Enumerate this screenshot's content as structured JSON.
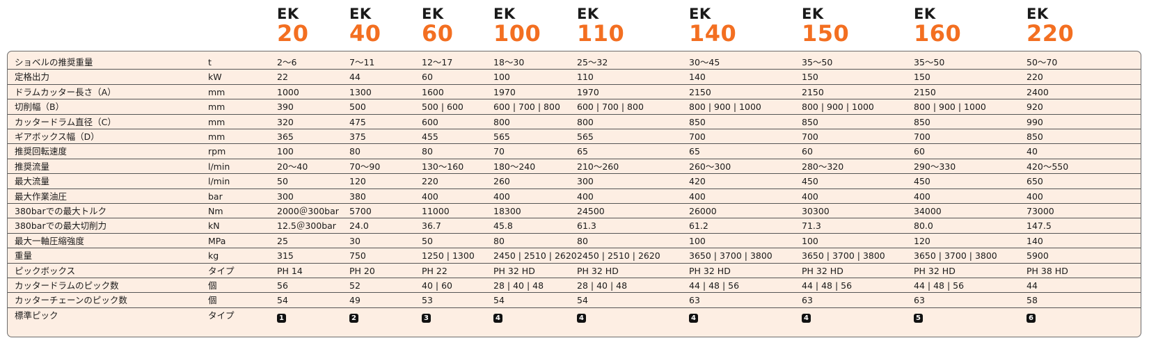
{
  "models": [
    {
      "prefix": "EK",
      "number": "20"
    },
    {
      "prefix": "EK",
      "number": "40"
    },
    {
      "prefix": "EK",
      "number": "60"
    },
    {
      "prefix": "EK",
      "number": "100"
    },
    {
      "prefix": "EK",
      "number": "110"
    },
    {
      "prefix": "EK",
      "number": "140"
    },
    {
      "prefix": "EK",
      "number": "150"
    },
    {
      "prefix": "EK",
      "number": "160"
    },
    {
      "prefix": "EK",
      "number": "220"
    }
  ],
  "accent_color": "#f36f21",
  "table_background": "#fdeee3",
  "rows": [
    {
      "label": "ショベルの推奨重量",
      "unit": "t",
      "values": [
        "2～6",
        "7～11",
        "12～17",
        "18～30",
        "25～32",
        "30～45",
        "35～50",
        "35～50",
        "50～70"
      ]
    },
    {
      "label": "定格出力",
      "unit": "kW",
      "values": [
        "22",
        "44",
        "60",
        "100",
        "110",
        "140",
        "150",
        "150",
        "220"
      ]
    },
    {
      "label": "ドラムカッター長さ（A）",
      "unit": "mm",
      "values": [
        "1000",
        "1300",
        "1600",
        "1970",
        "1970",
        "2150",
        "2150",
        "2150",
        "2400"
      ]
    },
    {
      "label": "切削幅（B）",
      "unit": "mm",
      "values": [
        "390",
        "500",
        "500 | 600",
        "600 | 700 | 800",
        "600 | 700 | 800",
        "800 | 900 | 1000",
        "800 | 900 | 1000",
        "800 | 900 | 1000",
        "920"
      ]
    },
    {
      "label": "カッタードラム直径（C）",
      "unit": "mm",
      "values": [
        "320",
        "475",
        "600",
        "800",
        "800",
        "850",
        "850",
        "850",
        "990"
      ]
    },
    {
      "label": "ギアボックス幅（D）",
      "unit": "mm",
      "values": [
        "365",
        "375",
        "455",
        "565",
        "565",
        "700",
        "700",
        "700",
        "850"
      ]
    },
    {
      "label": "推奨回転速度",
      "unit": "rpm",
      "values": [
        "100",
        "80",
        "80",
        "70",
        "65",
        "65",
        "60",
        "60",
        "40"
      ]
    },
    {
      "label": "推奨流量",
      "unit": "l/min",
      "values": [
        "20～40",
        "70～90",
        "130～160",
        "180～240",
        "210～260",
        "260～300",
        "280～320",
        "290～330",
        "420～550"
      ]
    },
    {
      "label": "最大流量",
      "unit": "l/min",
      "values": [
        "50",
        "120",
        "220",
        "260",
        "300",
        "420",
        "450",
        "450",
        "650"
      ]
    },
    {
      "label": "最大作業油圧",
      "unit": "bar",
      "values": [
        "300",
        "380",
        "400",
        "400",
        "400",
        "400",
        "400",
        "400",
        "400"
      ]
    },
    {
      "label": "380barでの最大トルク",
      "unit": "Nm",
      "values": [
        "2000＠300bar",
        "5700",
        "11000",
        "18300",
        "24500",
        "26000",
        "30300",
        "34000",
        "73000"
      ]
    },
    {
      "label": "380barでの最大切削力",
      "unit": "kN",
      "values": [
        "12.5＠300bar",
        "24.0",
        "36.7",
        "45.8",
        "61.3",
        "61.2",
        "71.3",
        "80.0",
        "147.5"
      ]
    },
    {
      "label": "最大一軸圧縮強度",
      "unit": "MPa",
      "values": [
        "25",
        "30",
        "50",
        "80",
        "80",
        "100",
        "100",
        "120",
        "140"
      ]
    },
    {
      "label": "重量",
      "unit": "kg",
      "values": [
        "315",
        "750",
        "1250 | 1300",
        "2450 | 2510 | 2620",
        "2450 | 2510 | 2620",
        "3650 | 3700 | 3800",
        "3650 | 3700 | 3800",
        "3650 | 3700 | 3800",
        "5900"
      ]
    },
    {
      "label": "ピックボックス",
      "unit": "タイプ",
      "values": [
        "PH 14",
        "PH 20",
        "PH 22",
        "PH 32 HD",
        "PH 32 HD",
        "PH 32 HD",
        "PH 32 HD",
        "PH 32 HD",
        "PH 38 HD"
      ]
    },
    {
      "label": "カッタードラムのピック数",
      "unit": "個",
      "values": [
        "56",
        "52",
        "40 | 60",
        "28 | 40 | 48",
        "28 | 40 | 48",
        "44 | 48 | 56",
        "44 | 48 | 56",
        "44 | 48 | 56",
        "44"
      ]
    },
    {
      "label": "カッターチェーンのピック数",
      "unit": "個",
      "values": [
        "54",
        "49",
        "53",
        "54",
        "54",
        "63",
        "63",
        "63",
        "58"
      ]
    },
    {
      "label": "標準ピック",
      "unit": "タイプ",
      "badges": [
        "1",
        "2",
        "3",
        "4",
        "4",
        "4",
        "4",
        "5",
        "6"
      ]
    }
  ]
}
